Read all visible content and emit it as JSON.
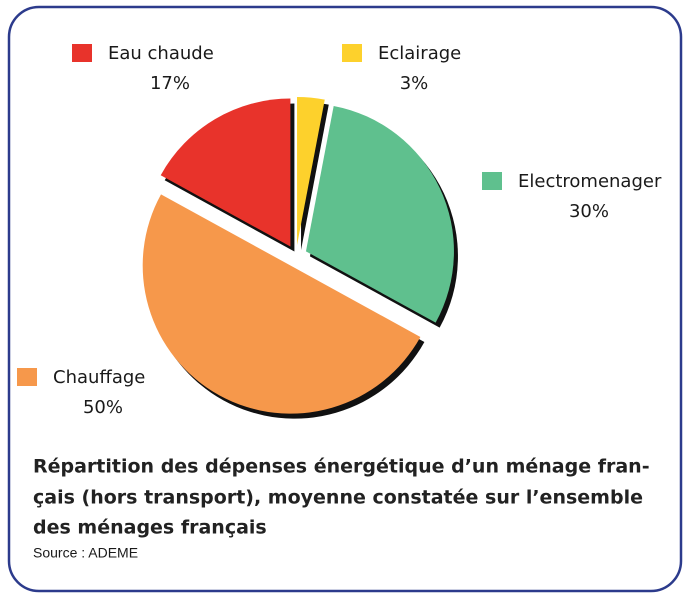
{
  "chart_data": {
    "type": "pie",
    "categories": [
      "Eau chaude",
      "Eclairage",
      "Electromenager",
      "Chauffage"
    ],
    "values": [
      17,
      3,
      30,
      50
    ],
    "value_labels": [
      "17%",
      "3%",
      "30%",
      "50%"
    ],
    "colors": [
      "#e8332b",
      "#fdd12c",
      "#5fc08e",
      "#f6984b"
    ],
    "caption": [
      "Répartition des dépenses énergétique d’un ménage fran-",
      "çais (hors transport), moyenne constatée sur l’ensemble",
      "des ménages français"
    ],
    "source": "Source : ADEME"
  }
}
